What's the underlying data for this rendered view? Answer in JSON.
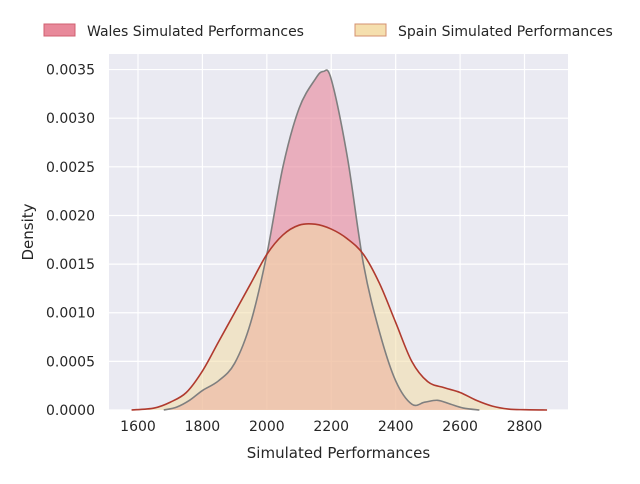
{
  "chart_data": {
    "type": "area",
    "title": "",
    "xlabel": "Simulated Performances",
    "ylabel": "Density",
    "xlim": [
      1510,
      2935
    ],
    "ylim": [
      0,
      0.00366
    ],
    "grid": true,
    "legend_placement": "top (outside, above plot)",
    "x_ticks": [
      1600,
      1800,
      2000,
      2200,
      2400,
      2600,
      2800
    ],
    "x_tick_labels": [
      "1600",
      "1800",
      "2000",
      "2200",
      "2400",
      "2600",
      "2800"
    ],
    "y_ticks": [
      0,
      0.0005,
      0.001,
      0.0015,
      0.002,
      0.0025,
      0.003,
      0.0035
    ],
    "y_tick_labels": [
      "0.0000",
      "0.0005",
      "0.0010",
      "0.0015",
      "0.0020",
      "0.0025",
      "0.0030",
      "0.0035"
    ],
    "series": [
      {
        "name": "Wales Simulated Performances",
        "fill": "#e7869a",
        "line": "#7f7f7f",
        "legend_swatch": "#e8899a",
        "x": [
          1680,
          1720,
          1760,
          1800,
          1850,
          1900,
          1950,
          2000,
          2050,
          2100,
          2150,
          2175,
          2200,
          2250,
          2300,
          2350,
          2400,
          2450,
          2490,
          2530,
          2570,
          2610,
          2660
        ],
        "y": [
          0,
          3e-05,
          0.0001,
          0.0002,
          0.0003,
          0.00048,
          0.0009,
          0.0016,
          0.0025,
          0.0031,
          0.0034,
          0.00348,
          0.0034,
          0.0026,
          0.0015,
          0.0008,
          0.0003,
          6e-05,
          8e-05,
          0.0001,
          6e-05,
          2e-05,
          0
        ]
      },
      {
        "name": "Spain Simulated Performances",
        "fill": "#f2dca6",
        "line": "#b03a2e",
        "legend_swatch": "#f5dfae",
        "x": [
          1580,
          1650,
          1700,
          1750,
          1800,
          1850,
          1900,
          1950,
          2000,
          2050,
          2100,
          2150,
          2200,
          2250,
          2300,
          2350,
          2400,
          2450,
          2500,
          2550,
          2600,
          2650,
          2700,
          2750,
          2800,
          2870
        ],
        "y": [
          0,
          2e-05,
          8e-05,
          0.00018,
          0.0004,
          0.0007,
          0.001,
          0.0013,
          0.0016,
          0.0018,
          0.0019,
          0.00191,
          0.00186,
          0.00176,
          0.0016,
          0.0013,
          0.0009,
          0.0005,
          0.00029,
          0.00023,
          0.00018,
          0.0001,
          4e-05,
          1e-05,
          3e-06,
          0
        ]
      }
    ]
  }
}
